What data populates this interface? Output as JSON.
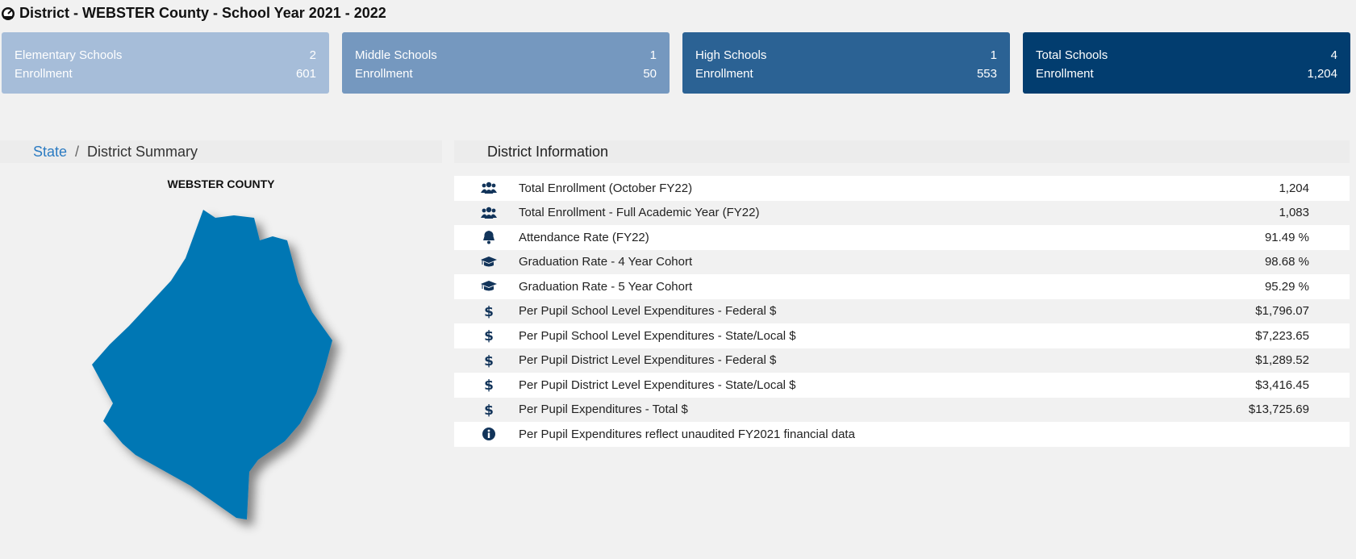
{
  "header": {
    "title": "District - WEBSTER County - School Year 2021 - 2022",
    "icon": "dashboard-icon"
  },
  "cards": [
    {
      "name": "Elementary Schools",
      "count": "2",
      "enrollment_label": "Enrollment",
      "enrollment": "601",
      "color": "#a6bdd9"
    },
    {
      "name": "Middle Schools",
      "count": "1",
      "enrollment_label": "Enrollment",
      "enrollment": "50",
      "color": "#7598bf"
    },
    {
      "name": "High Schools",
      "count": "1",
      "enrollment_label": "Enrollment",
      "enrollment": "553",
      "color": "#2b6294"
    },
    {
      "name": "Total Schools",
      "count": "4",
      "enrollment_label": "Enrollment",
      "enrollment": "1,204",
      "color": "#023d6f"
    }
  ],
  "breadcrumb": {
    "link": "State",
    "separator": "/",
    "current": "District Summary"
  },
  "map": {
    "county_label": "WEBSTER COUNTY",
    "fill_color": "#0277b4"
  },
  "info": {
    "title": "District Information",
    "rows": [
      {
        "icon": "users-icon",
        "label": "Total Enrollment (October FY22)",
        "value": "1,204"
      },
      {
        "icon": "users-icon",
        "label": "Total Enrollment - Full Academic Year (FY22)",
        "value": "1,083"
      },
      {
        "icon": "bell-icon",
        "label": "Attendance Rate (FY22)",
        "value": "91.49 %"
      },
      {
        "icon": "graduation-cap-icon",
        "label": "Graduation Rate - 4 Year Cohort",
        "value": "98.68 %"
      },
      {
        "icon": "graduation-cap-icon",
        "label": "Graduation Rate - 5 Year Cohort",
        "value": "95.29 %"
      },
      {
        "icon": "dollar-icon",
        "label": "Per Pupil School Level Expenditures - Federal $",
        "value": "$1,796.07"
      },
      {
        "icon": "dollar-icon",
        "label": "Per Pupil School Level Expenditures - State/Local $",
        "value": "$7,223.65"
      },
      {
        "icon": "dollar-icon",
        "label": "Per Pupil District Level Expenditures - Federal $",
        "value": "$1,289.52"
      },
      {
        "icon": "dollar-icon",
        "label": "Per Pupil District Level Expenditures - State/Local $",
        "value": "$3,416.45"
      },
      {
        "icon": "dollar-icon",
        "label": "Per Pupil Expenditures - Total $",
        "value": "$13,725.69"
      },
      {
        "icon": "info-circle-icon",
        "label": "Per Pupil Expenditures reflect unaudited FY2021 financial data",
        "value": ""
      }
    ]
  }
}
